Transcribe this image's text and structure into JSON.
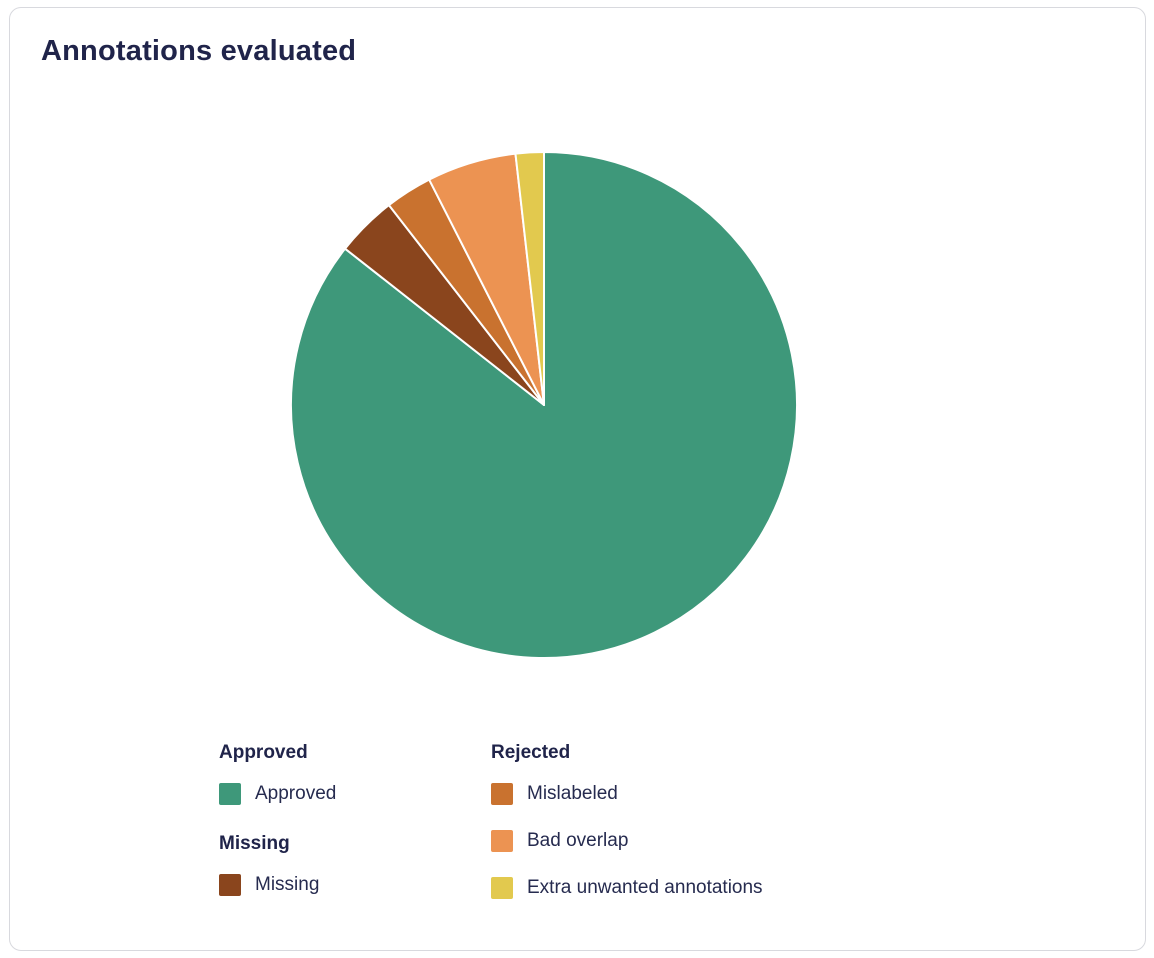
{
  "card": {
    "title": "Annotations evaluated"
  },
  "chart_data": {
    "type": "pie",
    "title": "Annotations evaluated",
    "unit": "percent_estimated",
    "start_angle_deg": 0,
    "direction": "clockwise",
    "legend_position": "bottom",
    "slices": [
      {
        "label": "Approved",
        "group": "Approved",
        "value": 85.6,
        "color": "#3e987a"
      },
      {
        "label": "Missing",
        "group": "Missing",
        "value": 3.9,
        "color": "#8a451d"
      },
      {
        "label": "Mislabeled",
        "group": "Rejected",
        "value": 3.0,
        "color": "#c9722f"
      },
      {
        "label": "Bad overlap",
        "group": "Rejected",
        "value": 5.7,
        "color": "#ec9352"
      },
      {
        "label": "Extra unwanted annotations",
        "group": "Rejected",
        "value": 1.8,
        "color": "#e2c94e"
      }
    ]
  },
  "legend": {
    "groups": [
      {
        "title": "Approved"
      },
      {
        "title": "Missing"
      },
      {
        "title": "Rejected"
      }
    ]
  },
  "colors": {
    "title_text": "#20244a",
    "legend_text": "#262b4f",
    "card_border": "#d8d9de",
    "slice_divider": "#ffffff"
  }
}
